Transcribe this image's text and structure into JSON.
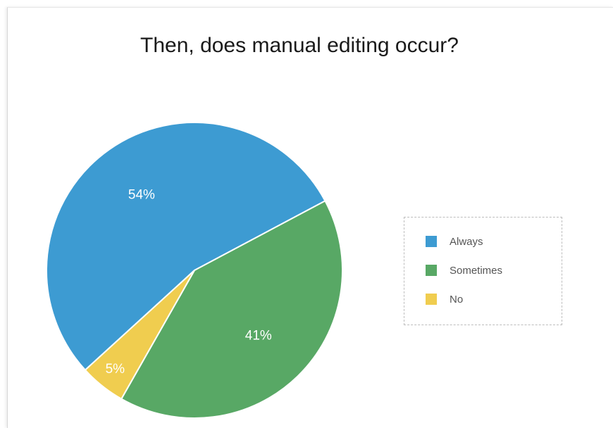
{
  "chart_data": {
    "type": "pie",
    "title": "Then, does manual editing occur?",
    "slices": [
      {
        "label": "Always",
        "value": 54,
        "display": "54%",
        "color": "#3d9bd2"
      },
      {
        "label": "Sometimes",
        "value": 41,
        "display": "41%",
        "color": "#58a865"
      },
      {
        "label": "No",
        "value": 5,
        "display": "5%",
        "color": "#f0cd4f"
      }
    ],
    "legend_position": "right"
  }
}
